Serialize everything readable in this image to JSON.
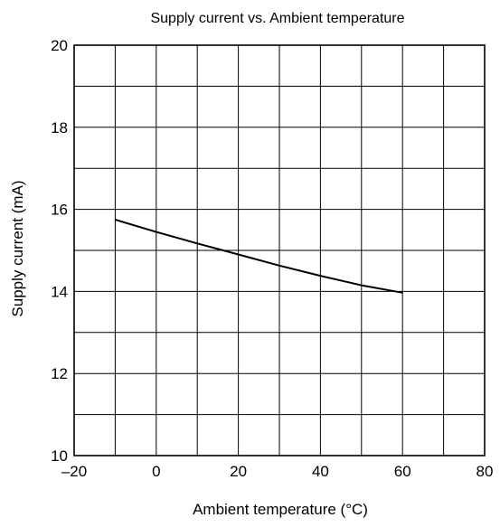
{
  "chart_data": {
    "type": "line",
    "title": "Supply current vs. Ambient temperature",
    "xlabel": "Ambient temperature (°C)",
    "ylabel": "Supply current (mA)",
    "xlim": [
      -20,
      80
    ],
    "ylim": [
      10,
      20
    ],
    "x_ticks": [
      -20,
      0,
      20,
      40,
      60,
      80
    ],
    "x_tick_labels": [
      "–20",
      "0",
      "20",
      "40",
      "60",
      "80"
    ],
    "y_ticks": [
      10,
      12,
      14,
      16,
      18,
      20
    ],
    "y_tick_labels": [
      "10",
      "12",
      "14",
      "16",
      "18",
      "20"
    ],
    "x_grid_step": 10,
    "y_grid_step": 1,
    "grid": true,
    "series": [
      {
        "x": [
          -10,
          0,
          10,
          20,
          30,
          40,
          50,
          60
        ],
        "y": [
          15.75,
          15.45,
          15.17,
          14.9,
          14.63,
          14.38,
          14.15,
          13.97
        ]
      }
    ]
  }
}
